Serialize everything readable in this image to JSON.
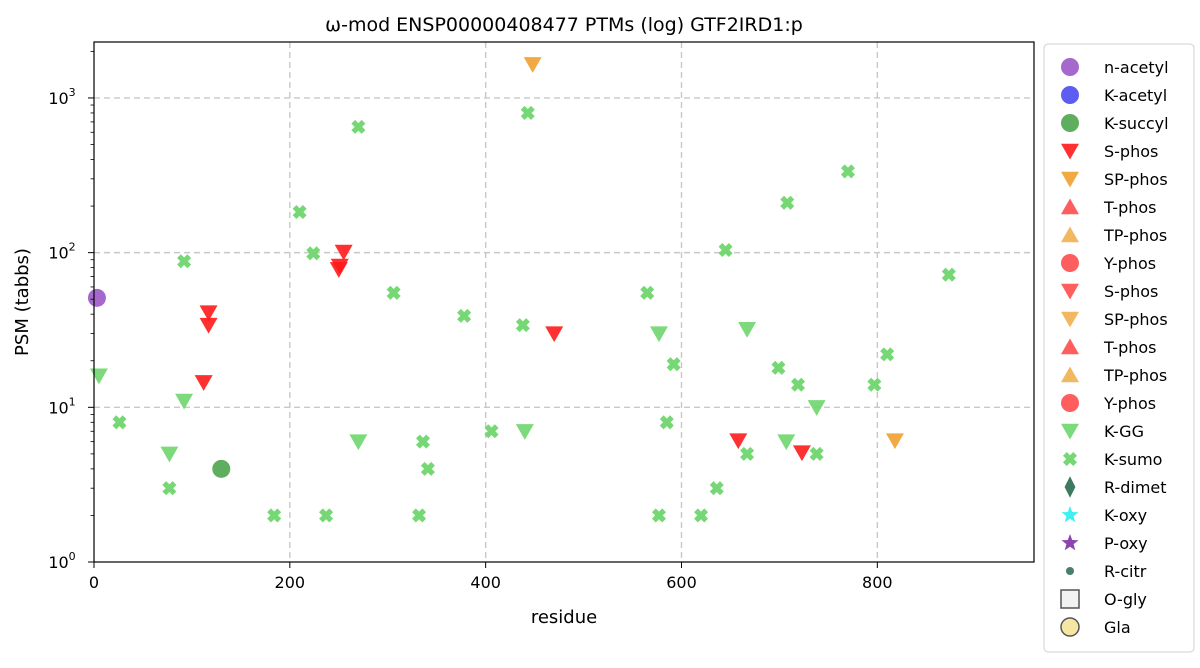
{
  "chart_data": {
    "type": "scatter",
    "title": "ω-mod ENSP00000408477 PTMs (log) GTF2IRD1:p",
    "xlabel": "residue",
    "ylabel": "PSM (tabbs)",
    "xlim": [
      0,
      960
    ],
    "ylim": [
      1,
      2300
    ],
    "yscale": "log",
    "grid": true,
    "legend_position": "outside-right",
    "x_ticks": [
      {
        "value": 0,
        "label": "0"
      },
      {
        "value": 200,
        "label": "200"
      },
      {
        "value": 400,
        "label": "400"
      },
      {
        "value": 600,
        "label": "600"
      },
      {
        "value": 800,
        "label": "800"
      }
    ],
    "y_ticks": [
      {
        "value": 1,
        "base": "10",
        "exp": "0"
      },
      {
        "value": 10,
        "base": "10",
        "exp": "1"
      },
      {
        "value": 100,
        "base": "10",
        "exp": "2"
      },
      {
        "value": 1000,
        "base": "10",
        "exp": "3"
      }
    ],
    "series": [
      {
        "name": "n-acetyl",
        "marker": "circle",
        "color": "#9b59c8",
        "points": [
          [
            3,
            51
          ]
        ]
      },
      {
        "name": "K-acetyl",
        "marker": "circle",
        "color": "#4b4bf0",
        "points": []
      },
      {
        "name": "K-succyl",
        "marker": "circle",
        "color": "#4ea44e",
        "points": [
          [
            130,
            4
          ]
        ]
      },
      {
        "name": "S-phos",
        "marker": "triangle-down",
        "color": "#ff1a1a",
        "points": [
          [
            117,
            41
          ],
          [
            117,
            34
          ],
          [
            112,
            14.5
          ],
          [
            250,
            78
          ],
          [
            251,
            82
          ],
          [
            255,
            101
          ],
          [
            470,
            30
          ],
          [
            658,
            6.1
          ],
          [
            723,
            5.1
          ]
        ]
      },
      {
        "name": "SP-phos",
        "marker": "triangle-down",
        "color": "#f0a030",
        "points": [
          [
            448,
            1650
          ],
          [
            818,
            6.1
          ]
        ]
      },
      {
        "name": "T-phos",
        "marker": "triangle-up",
        "color": "#ff4d4d",
        "points": []
      },
      {
        "name": "TP-phos",
        "marker": "triangle-up",
        "color": "#f0b050",
        "points": []
      },
      {
        "name": "Y-phos",
        "marker": "circle",
        "color": "#ff4d4d",
        "points": []
      },
      {
        "name": "S-phos",
        "marker": "triangle-down",
        "color": "#ff4d4d",
        "points": []
      },
      {
        "name": "SP-phos",
        "marker": "triangle-down",
        "color": "#f0b050",
        "points": []
      },
      {
        "name": "T-phos",
        "marker": "triangle-up",
        "color": "#ff4d4d",
        "points": []
      },
      {
        "name": "TP-phos",
        "marker": "triangle-up",
        "color": "#f0b050",
        "points": []
      },
      {
        "name": "Y-phos",
        "marker": "circle",
        "color": "#ff4d4d",
        "points": []
      },
      {
        "name": "K-GG",
        "marker": "triangle-down",
        "color": "#6ed66e",
        "points": [
          [
            5,
            16
          ],
          [
            77,
            5
          ],
          [
            92,
            11
          ],
          [
            270,
            6
          ],
          [
            440,
            7
          ],
          [
            577,
            30
          ],
          [
            667,
            32
          ],
          [
            707,
            6
          ],
          [
            738,
            10
          ]
        ]
      },
      {
        "name": "K-sumo",
        "marker": "x-cross",
        "color": "#6ed66e",
        "points": [
          [
            26,
            8
          ],
          [
            77,
            3
          ],
          [
            92,
            88
          ],
          [
            184,
            2
          ],
          [
            210,
            183
          ],
          [
            224,
            99
          ],
          [
            237,
            2
          ],
          [
            270,
            650
          ],
          [
            306,
            55
          ],
          [
            332,
            2
          ],
          [
            336,
            6
          ],
          [
            341,
            4
          ],
          [
            378,
            39
          ],
          [
            406,
            7
          ],
          [
            438,
            34
          ],
          [
            443,
            800
          ],
          [
            565,
            55
          ],
          [
            577,
            2
          ],
          [
            585,
            8
          ],
          [
            592,
            19
          ],
          [
            620,
            2
          ],
          [
            636,
            3
          ],
          [
            645,
            104
          ],
          [
            667,
            5
          ],
          [
            699,
            18
          ],
          [
            708,
            210
          ],
          [
            719,
            14
          ],
          [
            738,
            5
          ],
          [
            770,
            335
          ],
          [
            797,
            14
          ],
          [
            810,
            22
          ],
          [
            873,
            72
          ]
        ]
      },
      {
        "name": "R-dimet",
        "marker": "thin-diamond",
        "color": "#3d7a5f",
        "points": []
      },
      {
        "name": "K-oxy",
        "marker": "star",
        "color": "#3ff0f0",
        "points": []
      },
      {
        "name": "P-oxy",
        "marker": "star",
        "color": "#8e44ad",
        "points": []
      },
      {
        "name": "R-citr",
        "marker": "small-circle",
        "color": "#4a7f6a",
        "points": []
      },
      {
        "name": "O-gly",
        "marker": "square-open",
        "color": "#555555",
        "points": []
      },
      {
        "name": "Gla",
        "marker": "circle-open",
        "color": "#f5e6a3",
        "points": []
      }
    ]
  }
}
